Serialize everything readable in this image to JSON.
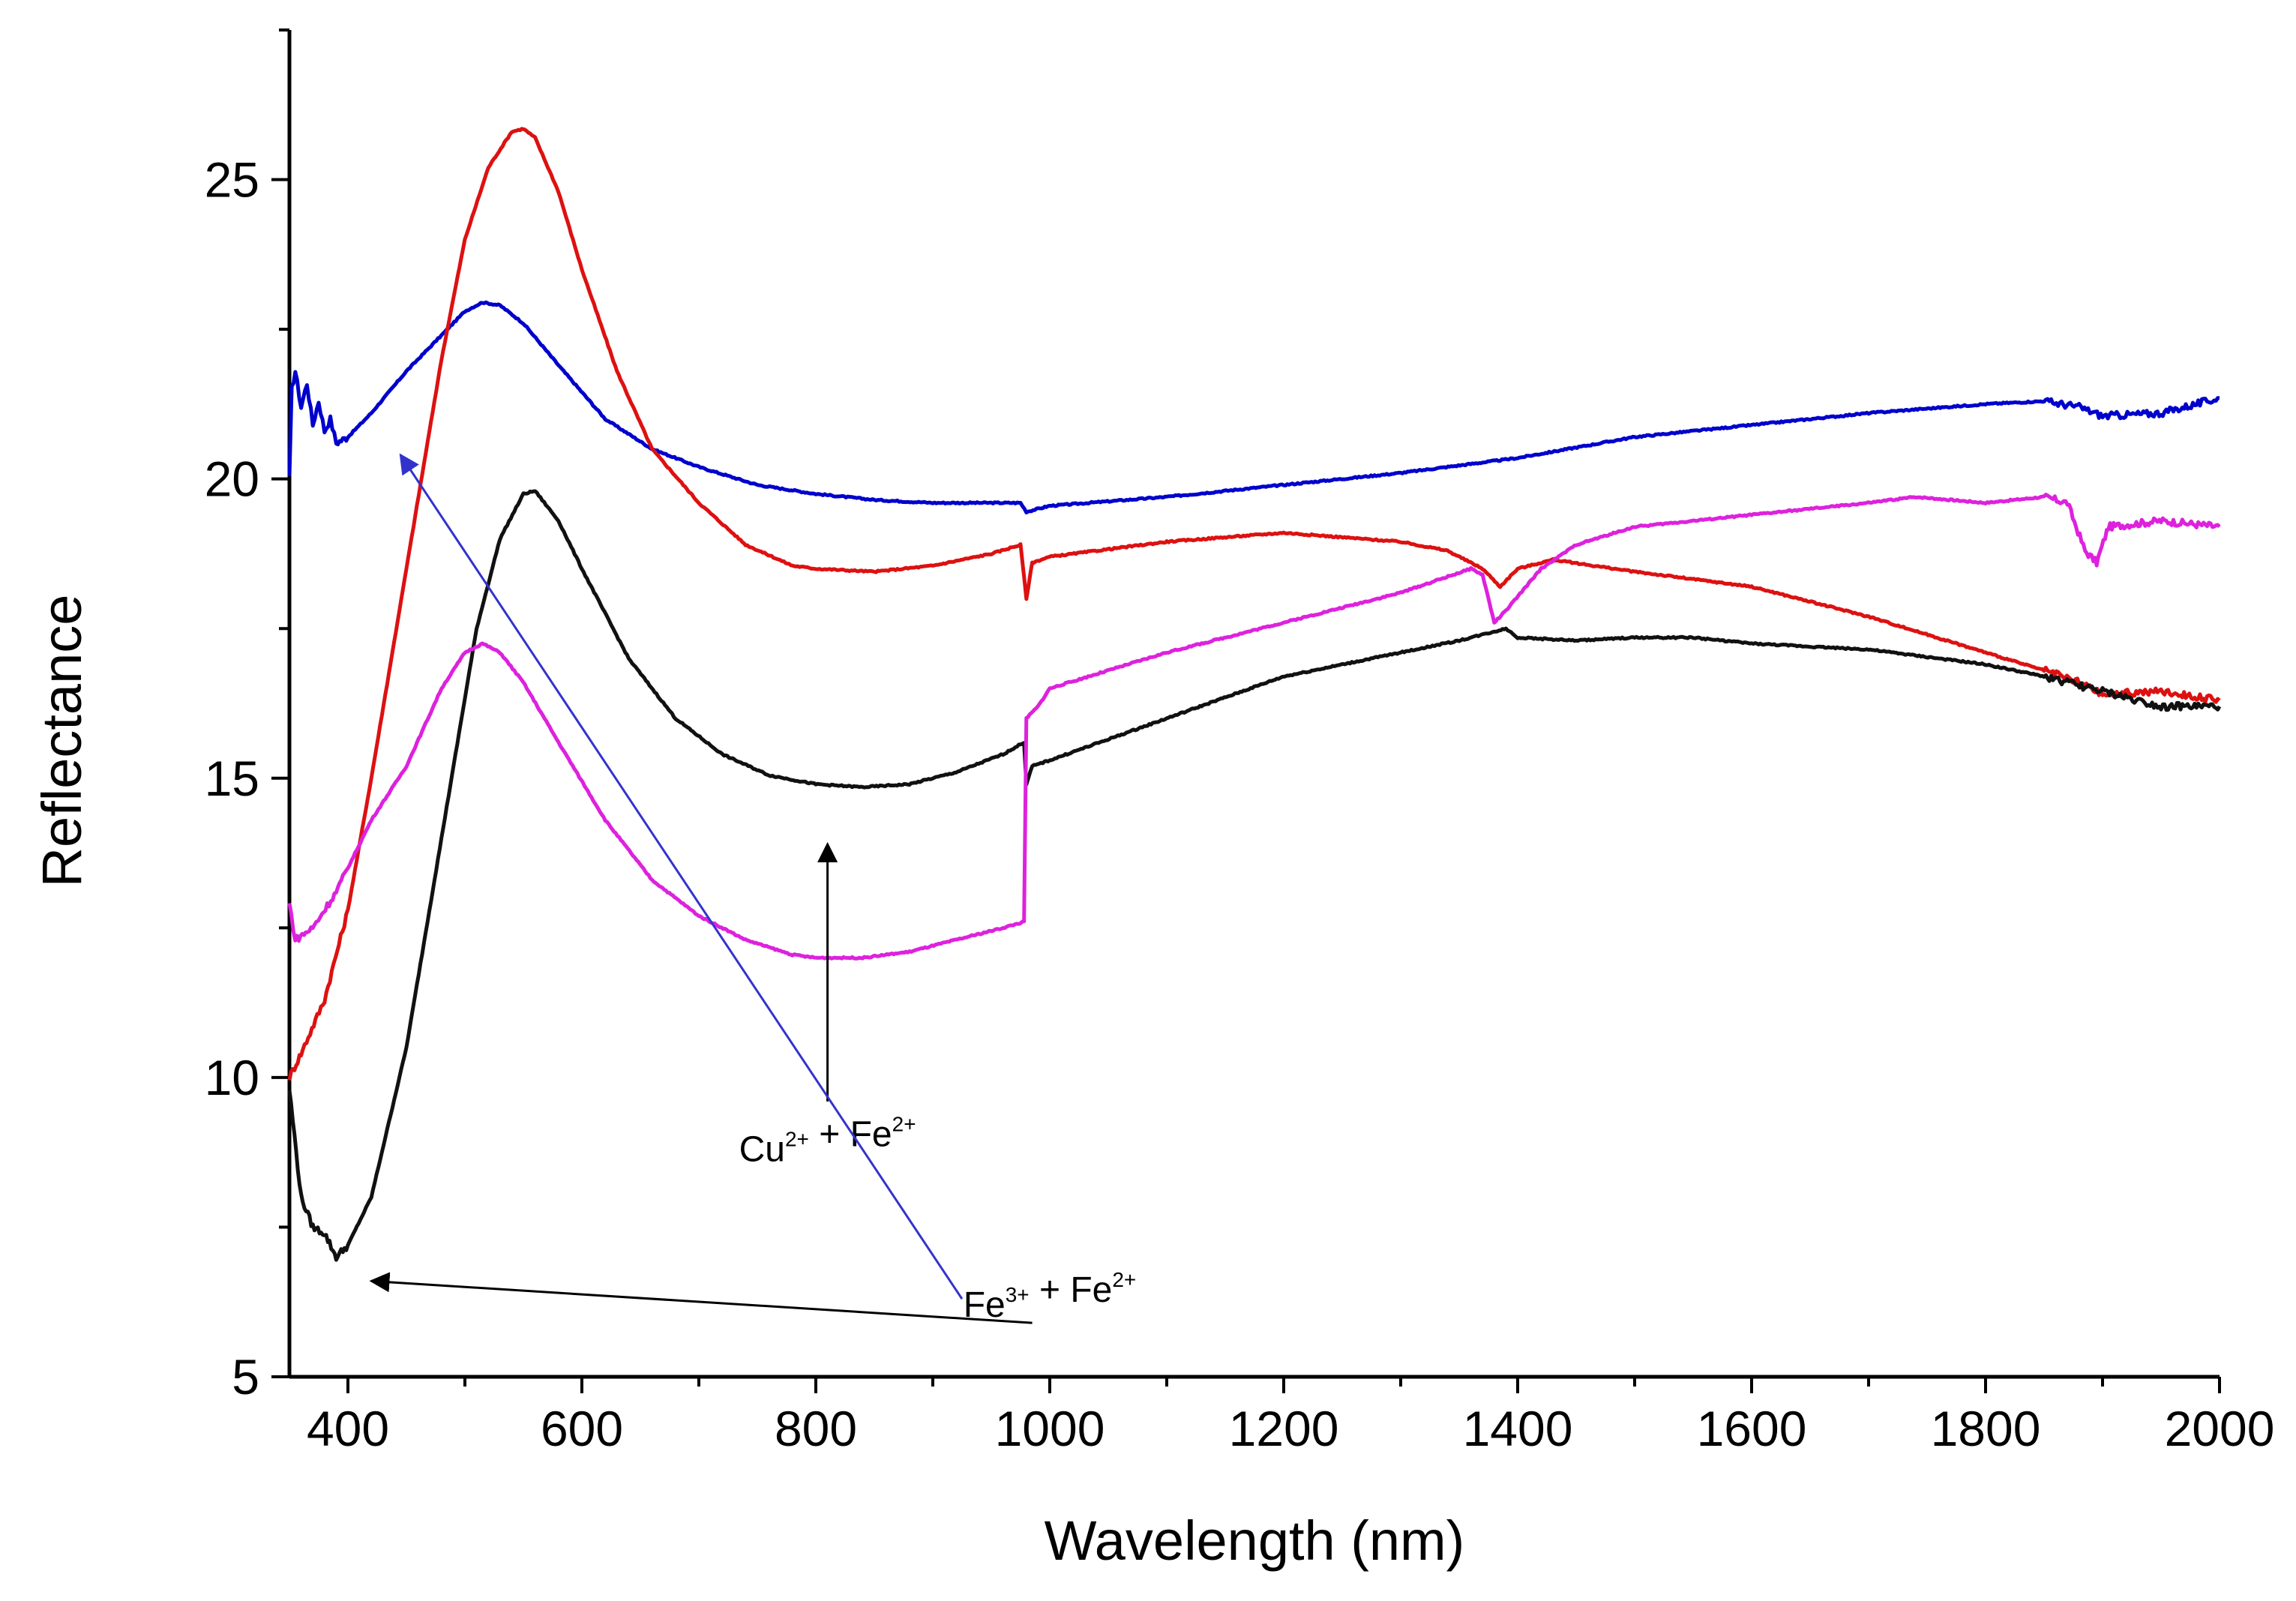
{
  "chart_data": {
    "type": "line",
    "xlabel": "Wavelength (nm)",
    "ylabel": "Reflectance",
    "xlim": [
      350,
      2000
    ],
    "ylim": [
      5,
      27.5
    ],
    "x_ticks": [
      400,
      600,
      800,
      1000,
      1200,
      1400,
      1600,
      1800,
      2000
    ],
    "y_ticks": [
      5,
      10,
      15,
      20,
      25
    ],
    "grid": false,
    "legend": "none",
    "series": [
      {
        "color": "#0000cc",
        "points": [
          [
            350,
            20.0
          ],
          [
            352,
            21.5
          ],
          [
            355,
            21.8
          ],
          [
            360,
            21.2
          ],
          [
            365,
            21.6
          ],
          [
            370,
            20.9
          ],
          [
            375,
            21.3
          ],
          [
            380,
            20.8
          ],
          [
            385,
            21.0
          ],
          [
            390,
            20.6
          ],
          [
            400,
            20.7
          ],
          [
            420,
            21.1
          ],
          [
            450,
            21.8
          ],
          [
            480,
            22.4
          ],
          [
            500,
            22.8
          ],
          [
            515,
            22.95
          ],
          [
            530,
            22.9
          ],
          [
            550,
            22.6
          ],
          [
            580,
            21.9
          ],
          [
            620,
            21.0
          ],
          [
            660,
            20.5
          ],
          [
            700,
            20.2
          ],
          [
            750,
            19.9
          ],
          [
            800,
            19.75
          ],
          [
            850,
            19.65
          ],
          [
            900,
            19.6
          ],
          [
            950,
            19.6
          ],
          [
            975,
            19.6
          ],
          [
            980,
            19.45
          ],
          [
            990,
            19.5
          ],
          [
            1000,
            19.55
          ],
          [
            1100,
            19.7
          ],
          [
            1200,
            19.9
          ],
          [
            1300,
            20.1
          ],
          [
            1400,
            20.35
          ],
          [
            1500,
            20.7
          ],
          [
            1600,
            20.9
          ],
          [
            1700,
            21.1
          ],
          [
            1800,
            21.25
          ],
          [
            1850,
            21.3
          ],
          [
            1880,
            21.2
          ],
          [
            1900,
            21.05
          ],
          [
            1950,
            21.1
          ],
          [
            2000,
            21.35
          ]
        ]
      },
      {
        "color": "#dd1111",
        "points": [
          [
            350,
            10.0
          ],
          [
            360,
            10.4
          ],
          [
            380,
            11.3
          ],
          [
            400,
            12.8
          ],
          [
            420,
            15.0
          ],
          [
            450,
            18.5
          ],
          [
            480,
            22.0
          ],
          [
            500,
            24.0
          ],
          [
            520,
            25.2
          ],
          [
            540,
            25.8
          ],
          [
            550,
            25.85
          ],
          [
            560,
            25.7
          ],
          [
            580,
            24.8
          ],
          [
            600,
            23.5
          ],
          [
            630,
            21.8
          ],
          [
            660,
            20.5
          ],
          [
            700,
            19.6
          ],
          [
            740,
            18.9
          ],
          [
            780,
            18.55
          ],
          [
            800,
            18.5
          ],
          [
            850,
            18.45
          ],
          [
            900,
            18.55
          ],
          [
            950,
            18.75
          ],
          [
            975,
            18.9
          ],
          [
            980,
            18.0
          ],
          [
            985,
            18.6
          ],
          [
            1000,
            18.7
          ],
          [
            1100,
            18.95
          ],
          [
            1200,
            19.1
          ],
          [
            1300,
            18.95
          ],
          [
            1340,
            18.8
          ],
          [
            1370,
            18.5
          ],
          [
            1385,
            18.2
          ],
          [
            1400,
            18.5
          ],
          [
            1430,
            18.65
          ],
          [
            1500,
            18.45
          ],
          [
            1600,
            18.2
          ],
          [
            1700,
            17.7
          ],
          [
            1800,
            17.1
          ],
          [
            1850,
            16.8
          ],
          [
            1880,
            16.6
          ],
          [
            1900,
            16.4
          ],
          [
            1950,
            16.45
          ],
          [
            2000,
            16.3
          ]
        ]
      },
      {
        "color": "#111111",
        "points": [
          [
            350,
            9.8
          ],
          [
            360,
            8.0
          ],
          [
            370,
            7.5
          ],
          [
            380,
            7.4
          ],
          [
            390,
            7.0
          ],
          [
            400,
            7.2
          ],
          [
            420,
            8.0
          ],
          [
            450,
            10.5
          ],
          [
            480,
            14.0
          ],
          [
            510,
            17.5
          ],
          [
            530,
            19.0
          ],
          [
            550,
            19.75
          ],
          [
            560,
            19.8
          ],
          [
            580,
            19.3
          ],
          [
            600,
            18.5
          ],
          [
            640,
            17.0
          ],
          [
            680,
            16.0
          ],
          [
            720,
            15.4
          ],
          [
            760,
            15.05
          ],
          [
            800,
            14.9
          ],
          [
            840,
            14.85
          ],
          [
            880,
            14.9
          ],
          [
            920,
            15.1
          ],
          [
            960,
            15.4
          ],
          [
            978,
            15.6
          ],
          [
            980,
            14.9
          ],
          [
            985,
            15.2
          ],
          [
            1000,
            15.3
          ],
          [
            1100,
            16.0
          ],
          [
            1200,
            16.7
          ],
          [
            1300,
            17.1
          ],
          [
            1350,
            17.3
          ],
          [
            1390,
            17.5
          ],
          [
            1400,
            17.35
          ],
          [
            1450,
            17.3
          ],
          [
            1500,
            17.35
          ],
          [
            1550,
            17.35
          ],
          [
            1600,
            17.25
          ],
          [
            1700,
            17.15
          ],
          [
            1800,
            16.9
          ],
          [
            1850,
            16.7
          ],
          [
            1900,
            16.45
          ],
          [
            1950,
            16.2
          ],
          [
            2000,
            16.2
          ]
        ]
      },
      {
        "color": "#dd22dd",
        "points": [
          [
            350,
            12.9
          ],
          [
            355,
            12.3
          ],
          [
            370,
            12.5
          ],
          [
            390,
            13.1
          ],
          [
            400,
            13.5
          ],
          [
            420,
            14.3
          ],
          [
            450,
            15.2
          ],
          [
            480,
            16.5
          ],
          [
            500,
            17.1
          ],
          [
            515,
            17.25
          ],
          [
            530,
            17.1
          ],
          [
            550,
            16.6
          ],
          [
            580,
            15.6
          ],
          [
            620,
            14.3
          ],
          [
            660,
            13.3
          ],
          [
            700,
            12.7
          ],
          [
            740,
            12.3
          ],
          [
            780,
            12.05
          ],
          [
            800,
            12.0
          ],
          [
            840,
            12.0
          ],
          [
            880,
            12.1
          ],
          [
            920,
            12.3
          ],
          [
            960,
            12.5
          ],
          [
            978,
            12.6
          ],
          [
            980,
            16.0
          ],
          [
            990,
            16.2
          ],
          [
            1000,
            16.5
          ],
          [
            1100,
            17.1
          ],
          [
            1200,
            17.6
          ],
          [
            1300,
            18.1
          ],
          [
            1360,
            18.5
          ],
          [
            1370,
            18.4
          ],
          [
            1380,
            17.6
          ],
          [
            1390,
            17.8
          ],
          [
            1420,
            18.5
          ],
          [
            1450,
            18.9
          ],
          [
            1500,
            19.2
          ],
          [
            1600,
            19.4
          ],
          [
            1700,
            19.6
          ],
          [
            1740,
            19.7
          ],
          [
            1800,
            19.6
          ],
          [
            1850,
            19.7
          ],
          [
            1870,
            19.6
          ],
          [
            1885,
            18.8
          ],
          [
            1895,
            18.6
          ],
          [
            1905,
            19.2
          ],
          [
            1950,
            19.3
          ],
          [
            2000,
            19.2
          ]
        ]
      }
    ],
    "annotations": [
      {
        "text": "Cu2+ + Fe2+",
        "label_at": [
          810,
          8.6
        ],
        "arrow_from": [
          810,
          9.6
        ],
        "arrow_to": [
          810,
          13.9
        ],
        "color": "#000000"
      },
      {
        "text": "Fe3+ + Fe2+",
        "label_at": [
          1000,
          6.0
        ],
        "arrow_from": [
          985,
          5.9
        ],
        "arrow_to": [
          420,
          6.6
        ],
        "color": "#000000"
      },
      {
        "text": "",
        "arrow_from": [
          925,
          6.3
        ],
        "arrow_to": [
          445,
          20.4
        ],
        "color": "#3333cc"
      }
    ]
  }
}
